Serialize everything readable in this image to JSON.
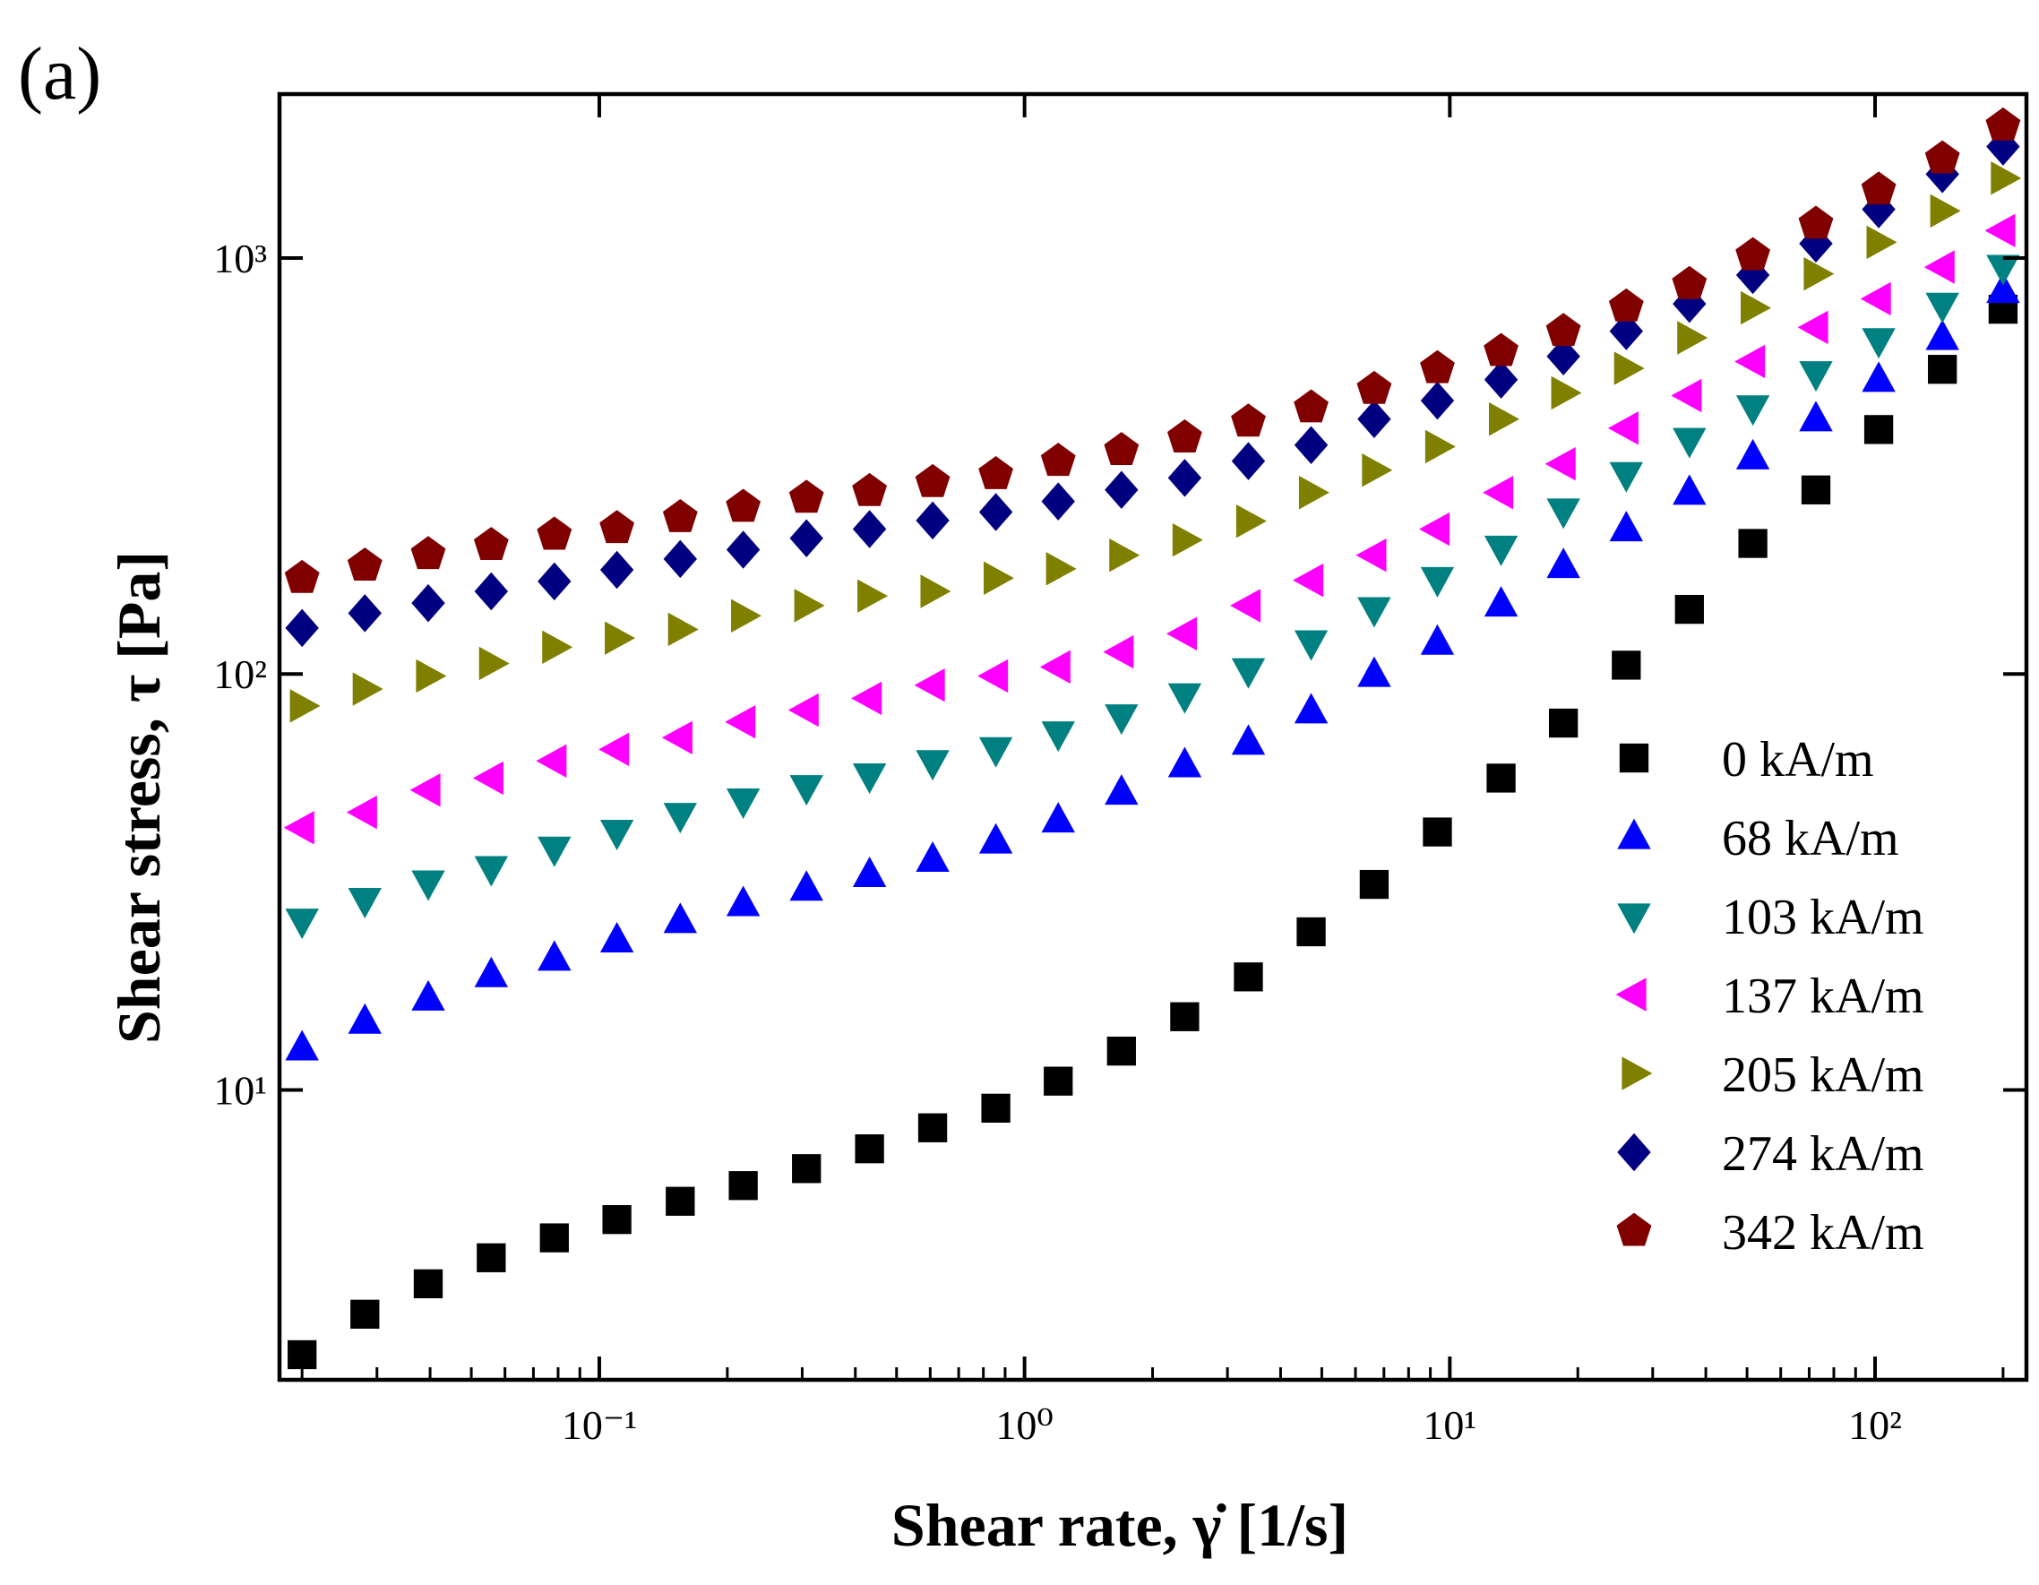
{
  "panel_label": "(a)",
  "chart_data": {
    "type": "scatter",
    "x_label": "Shear rate, γ̇ [1/s]",
    "y_label": "Shear stress, τ  [Pa]",
    "xscale": "log",
    "yscale": "log",
    "xlim": [
      0.0177,
      227
    ],
    "ylim": [
      2.01,
      2478
    ],
    "xticks": [
      {
        "value": 0.1,
        "label": "10⁻¹"
      },
      {
        "value": 1,
        "label": "10⁰"
      },
      {
        "value": 10,
        "label": "10¹"
      },
      {
        "value": 100,
        "label": "10²"
      }
    ],
    "xminorticks": [
      0.02,
      0.03,
      0.04,
      0.05,
      0.06,
      0.07,
      0.08,
      0.09,
      0.2,
      0.3,
      0.4,
      0.5,
      0.6,
      0.7,
      0.8,
      0.9,
      2,
      3,
      4,
      5,
      6,
      7,
      8,
      9,
      20,
      30,
      40,
      50,
      60,
      70,
      80,
      90,
      200
    ],
    "yticks": [
      {
        "value": 10,
        "label": "10¹"
      },
      {
        "value": 100,
        "label": "10²"
      },
      {
        "value": 1000,
        "label": "10³"
      }
    ],
    "legend": "lower right",
    "x": [
      0.02,
      0.0281,
      0.0396,
      0.0557,
      0.0784,
      0.11,
      0.155,
      0.218,
      0.307,
      0.432,
      0.608,
      0.856,
      1.2,
      1.69,
      2.38,
      3.36,
      4.72,
      6.64,
      9.35,
      13.2,
      18.5,
      26.0,
      36.6,
      51.6,
      72.6,
      102,
      144,
      200
    ],
    "series": [
      {
        "name": "0 kA/m",
        "color": "#000000",
        "marker": "square",
        "values": [
          2.31,
          2.89,
          3.42,
          3.95,
          4.41,
          4.88,
          5.4,
          5.89,
          6.47,
          7.22,
          8.11,
          9.04,
          10.5,
          12.4,
          15.0,
          18.7,
          24.0,
          31.2,
          41.7,
          56.2,
          76.2,
          105,
          143,
          206,
          277,
          387,
          540,
          753
        ]
      },
      {
        "name": "68 kA/m",
        "color": "#0000ff",
        "marker": "triangle-up",
        "values": [
          12.6,
          14.6,
          16.6,
          18.9,
          20.7,
          22.9,
          25.5,
          28.0,
          30.5,
          32.9,
          35.8,
          39.6,
          44.5,
          51.9,
          60.4,
          68.4,
          81.4,
          99.6,
          119,
          147,
          182,
          223,
          273,
          332,
          410,
          510,
          643,
          834
        ]
      },
      {
        "name": "103 kA/m",
        "color": "#008080",
        "marker": "triangle-down",
        "values": [
          25.5,
          28.6,
          31.5,
          34.1,
          38.0,
          41.7,
          45.8,
          49.6,
          53.4,
          57.0,
          61.3,
          65.9,
          71.9,
          79.0,
          88.8,
          102,
          119,
          143,
          169,
          201,
          247,
          302,
          365,
          437,
          528,
          634,
          771,
          951
        ]
      },
      {
        "name": "137 kA/m",
        "color": "#ff00ff",
        "marker": "triangle-left",
        "values": [
          42.7,
          46.5,
          52.6,
          56.2,
          61.8,
          65.9,
          70.3,
          76.7,
          81.9,
          87.4,
          94.0,
          98.9,
          104,
          113,
          125,
          146,
          168,
          193,
          223,
          273,
          320,
          390,
          467,
          564,
          681,
          798,
          951,
          1164
        ]
      },
      {
        "name": "205 kA/m",
        "color": "#808000",
        "marker": "triangle-right",
        "values": [
          83.8,
          92.0,
          98.9,
          106,
          116,
          122,
          128,
          138,
          146,
          154,
          158,
          170,
          179,
          193,
          210,
          233,
          273,
          309,
          352,
          410,
          474,
          543,
          643,
          759,
          916,
          1091,
          1298,
          1556
        ]
      },
      {
        "name": "274 kA/m",
        "color": "#000080",
        "marker": "diamond",
        "values": [
          129,
          140,
          148,
          158,
          167,
          178,
          189,
          199,
          212,
          223,
          234,
          245,
          260,
          277,
          296,
          325,
          355,
          410,
          454,
          510,
          580,
          667,
          776,
          910,
          1083,
          1309,
          1591,
          1853
        ]
      },
      {
        "name": "342 kA/m",
        "color": "#800000",
        "marker": "pentagon",
        "values": [
          170,
          182,
          194,
          204,
          216,
          224,
          238,
          252,
          265,
          275,
          289,
          302,
          325,
          345,
          370,
          404,
          437,
          484,
          543,
          597,
          667,
          764,
          865,
          1015,
          1208,
          1459,
          1734,
          2080
        ]
      }
    ]
  }
}
